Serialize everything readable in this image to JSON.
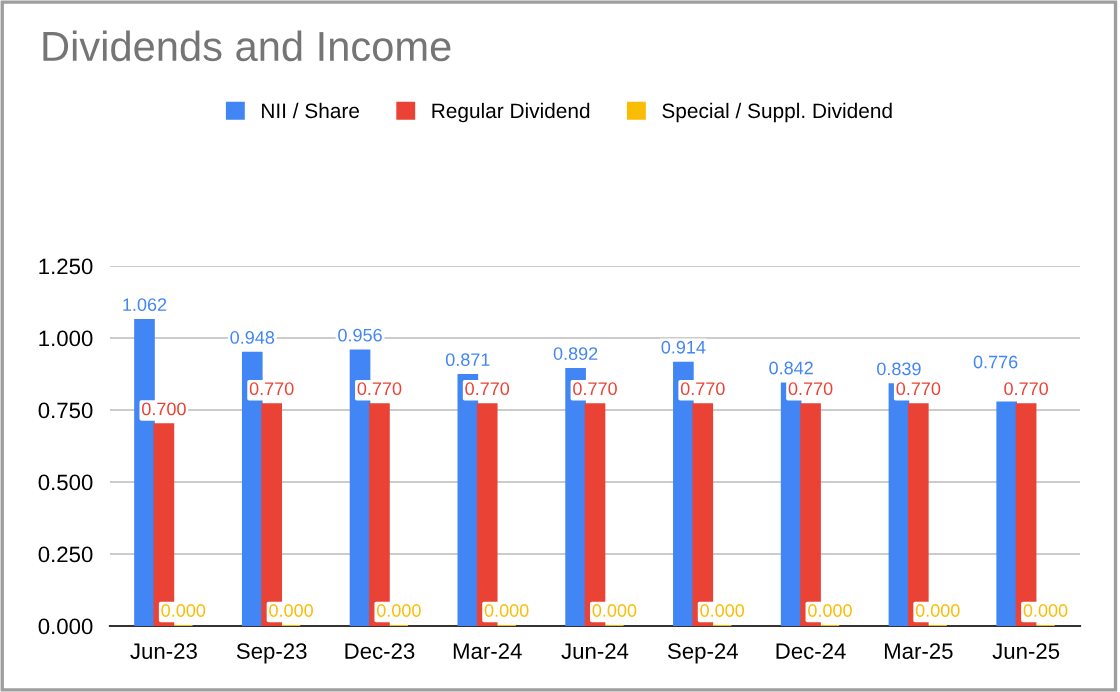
{
  "chart_data": {
    "type": "bar",
    "title": "Dividends and Income",
    "categories": [
      "Jun-23",
      "Sep-23",
      "Dec-23",
      "Mar-24",
      "Jun-24",
      "Sep-24",
      "Dec-24",
      "Mar-25",
      "Jun-25"
    ],
    "series": [
      {
        "name": "NII / Share",
        "color": "#4285f4",
        "values": [
          1.062,
          0.948,
          0.956,
          0.871,
          0.892,
          0.914,
          0.842,
          0.839,
          0.776
        ],
        "value_labels": [
          "1.062",
          "0.948",
          "0.956",
          "0.871",
          "0.892",
          "0.914",
          "0.842",
          "0.839",
          "0.776"
        ]
      },
      {
        "name": "Regular Dividend",
        "color": "#ea4335",
        "values": [
          0.7,
          0.77,
          0.77,
          0.77,
          0.77,
          0.77,
          0.77,
          0.77,
          0.77
        ],
        "value_labels": [
          "0.700",
          "0.770",
          "0.770",
          "0.770",
          "0.770",
          "0.770",
          "0.770",
          "0.770",
          "0.770"
        ]
      },
      {
        "name": "Special / Suppl. Dividend",
        "color": "#fbbc04",
        "values": [
          0,
          0,
          0,
          0,
          0,
          0,
          0,
          0,
          0
        ],
        "value_labels": [
          "0.000",
          "0.000",
          "0.000",
          "0.000",
          "0.000",
          "0.000",
          "0.000",
          "0.000",
          "0.000"
        ]
      }
    ],
    "ylim": [
      0,
      1.25
    ],
    "yticks": [
      {
        "value": 0,
        "label": "0.000"
      },
      {
        "value": 0.25,
        "label": "0.250"
      },
      {
        "value": 0.5,
        "label": "0.500"
      },
      {
        "value": 0.75,
        "label": "0.750"
      },
      {
        "value": 1.0,
        "label": "1.000"
      },
      {
        "value": 1.25,
        "label": "1.250"
      }
    ],
    "grid": "y",
    "legend": "top"
  }
}
